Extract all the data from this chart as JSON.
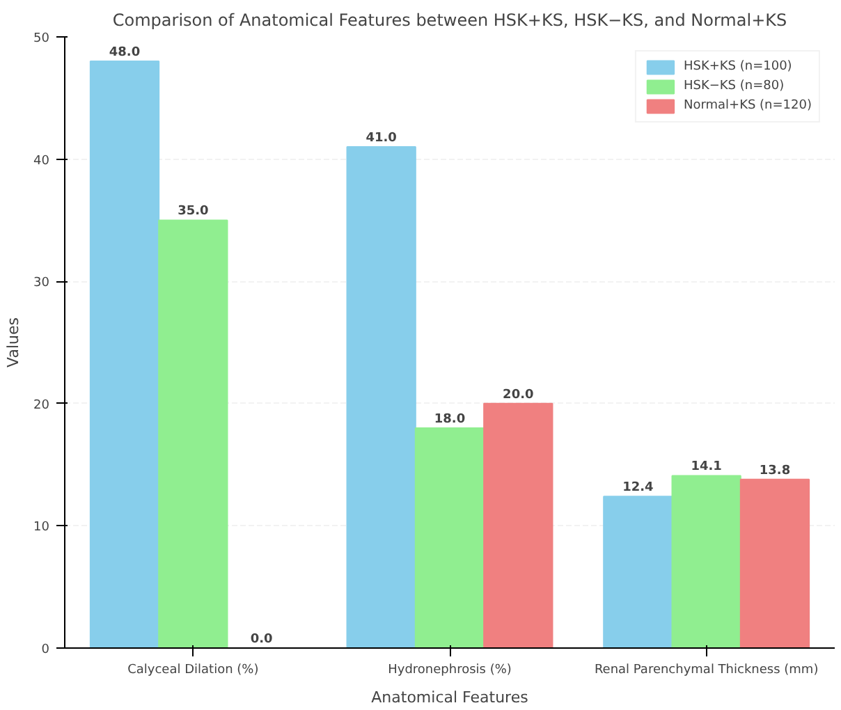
{
  "chart_data": {
    "type": "bar",
    "title": "Comparison of Anatomical Features between HSK+KS, HSK−KS, and Normal+KS",
    "xlabel": "Anatomical Features",
    "ylabel": "Values",
    "categories": [
      "Calyceal Dilation (%)",
      "Hydronephrosis (%)",
      "Renal Parenchymal Thickness (mm)"
    ],
    "series": [
      {
        "name": "HSK+KS (n=100)",
        "color": "#87ceeb",
        "values": [
          48.0,
          41.0,
          12.4
        ],
        "value_labels": [
          "48.0",
          "41.0",
          "12.4"
        ]
      },
      {
        "name": "HSK−KS (n=80)",
        "color": "#90ee90",
        "values": [
          35.0,
          18.0,
          14.1
        ],
        "value_labels": [
          "35.0",
          "18.0",
          "14.1"
        ]
      },
      {
        "name": "Normal+KS (n=120)",
        "color": "#f08080",
        "values": [
          0.0,
          20.0,
          13.8
        ],
        "value_labels": [
          "0.0",
          "20.0",
          "13.8"
        ]
      }
    ],
    "ylim": [
      0,
      50
    ],
    "yticks": [
      0,
      10,
      20,
      30,
      40,
      50
    ],
    "grid": "y",
    "legend": "top right"
  }
}
